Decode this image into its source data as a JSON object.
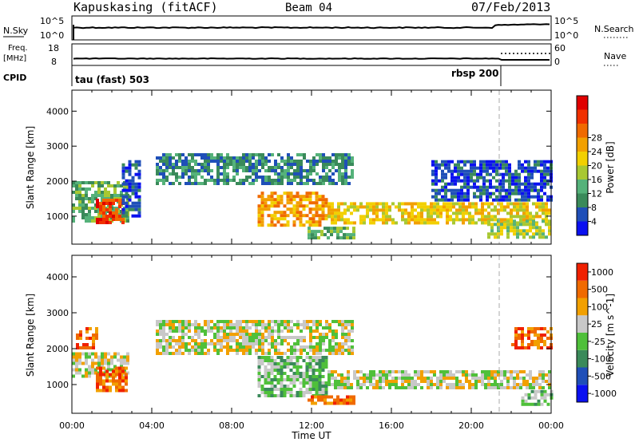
{
  "header": {
    "station": "Kapuskasing (fitACF)",
    "beam": "Beam 04",
    "date": "07/Feb/2013"
  },
  "top_panels": {
    "nsky_label": "N.Sky",
    "nsky_ticks": [
      "10^5",
      "10^0"
    ],
    "nsearch_label": "N.Search",
    "nsearch_ticks": [
      "10^5",
      "10^0"
    ],
    "freq_label": "Freq.",
    "freq_unit": "[MHz]",
    "freq_ticks": [
      "18",
      "8"
    ],
    "nave_label": "Nave",
    "nave_ticks": [
      "60",
      "0"
    ],
    "cpid_label": "CPID",
    "cpid_segments": [
      {
        "label": "tau (fast) 503",
        "start_hour": 0,
        "end_hour": 21.2
      },
      {
        "label": "rbsp 200",
        "start_hour": 21.2,
        "end_hour": 24
      }
    ]
  },
  "colors": {
    "power_scale": [
      "#0a10f0",
      "#1f4fb8",
      "#3a8a5a",
      "#55b27a",
      "#a8c832",
      "#f2d000",
      "#f2a000",
      "#f06a00",
      "#f03000",
      "#e00000"
    ],
    "velocity_scale": [
      "#0a10f0",
      "#1f4fb8",
      "#3a8a5a",
      "#4fc03a",
      "#c8c8c8",
      "#f2a000",
      "#f06a00",
      "#f02000"
    ]
  },
  "chart_data": [
    {
      "type": "heatmap",
      "panel": "power",
      "xlabel": "",
      "ylabel": "Slant Range [km]",
      "xlim": [
        0,
        24
      ],
      "ylim": [
        200,
        4600
      ],
      "yticks": [
        "1000",
        "2000",
        "3000",
        "4000"
      ],
      "colorbar_label": "Power [dB]",
      "colorbar_ticks": [
        "4",
        "8",
        "12",
        "16",
        "20",
        "24",
        "28"
      ],
      "regions": [
        {
          "t0": 0.0,
          "t1": 2.8,
          "r0": 900,
          "r1": 2000,
          "level": 3
        },
        {
          "t0": 1.2,
          "t1": 2.6,
          "r0": 850,
          "r1": 1500,
          "level": 8
        },
        {
          "t0": 2.5,
          "t1": 3.4,
          "r0": 1000,
          "r1": 2600,
          "level": 1
        },
        {
          "t0": 4.2,
          "t1": 14.0,
          "r0": 1900,
          "r1": 2800,
          "level": 2
        },
        {
          "t0": 9.3,
          "t1": 12.8,
          "r0": 700,
          "r1": 1700,
          "level": 6
        },
        {
          "t0": 12.8,
          "t1": 24.0,
          "r0": 800,
          "r1": 1400,
          "level": 5
        },
        {
          "t0": 11.8,
          "t1": 14.2,
          "r0": 400,
          "r1": 700,
          "level": 3
        },
        {
          "t0": 20.8,
          "t1": 24.0,
          "r0": 400,
          "r1": 900,
          "level": 4
        },
        {
          "t0": 18.0,
          "t1": 24.0,
          "r0": 1500,
          "r1": 2600,
          "level": 1
        }
      ]
    },
    {
      "type": "heatmap",
      "panel": "velocity",
      "xlabel": "Time UT",
      "ylabel": "Slant Range [km]",
      "xlim": [
        0,
        24
      ],
      "ylim": [
        200,
        4600
      ],
      "xticks": [
        "00:00",
        "04:00",
        "08:00",
        "12:00",
        "16:00",
        "20:00",
        "00:00"
      ],
      "yticks": [
        "1000",
        "2000",
        "3000",
        "4000"
      ],
      "colorbar_label": "Velocity [m s^-1]",
      "colorbar_ticks": [
        "1000",
        "500",
        "100",
        "25",
        "-25",
        "-100",
        "-500",
        "-1000"
      ],
      "regions": [
        {
          "t0": 0.0,
          "t1": 2.8,
          "r0": 1200,
          "r1": 1900,
          "level": 4
        },
        {
          "t0": 1.2,
          "t1": 2.7,
          "r0": 850,
          "r1": 1500,
          "level": 6
        },
        {
          "t0": 0.2,
          "t1": 1.2,
          "r0": 2000,
          "r1": 2600,
          "level": 6
        },
        {
          "t0": 4.2,
          "t1": 14.0,
          "r0": 1900,
          "r1": 2800,
          "level": 4
        },
        {
          "t0": 9.3,
          "t1": 12.8,
          "r0": 700,
          "r1": 1800,
          "level": 3
        },
        {
          "t0": 12.8,
          "t1": 24.0,
          "r0": 900,
          "r1": 1400,
          "level": 4
        },
        {
          "t0": 11.8,
          "t1": 14.2,
          "r0": 450,
          "r1": 700,
          "level": 6
        },
        {
          "t0": 22.0,
          "t1": 24.0,
          "r0": 2000,
          "r1": 2600,
          "level": 6
        },
        {
          "t0": 22.5,
          "t1": 24.0,
          "r0": 450,
          "r1": 850,
          "level": 3
        }
      ]
    }
  ]
}
